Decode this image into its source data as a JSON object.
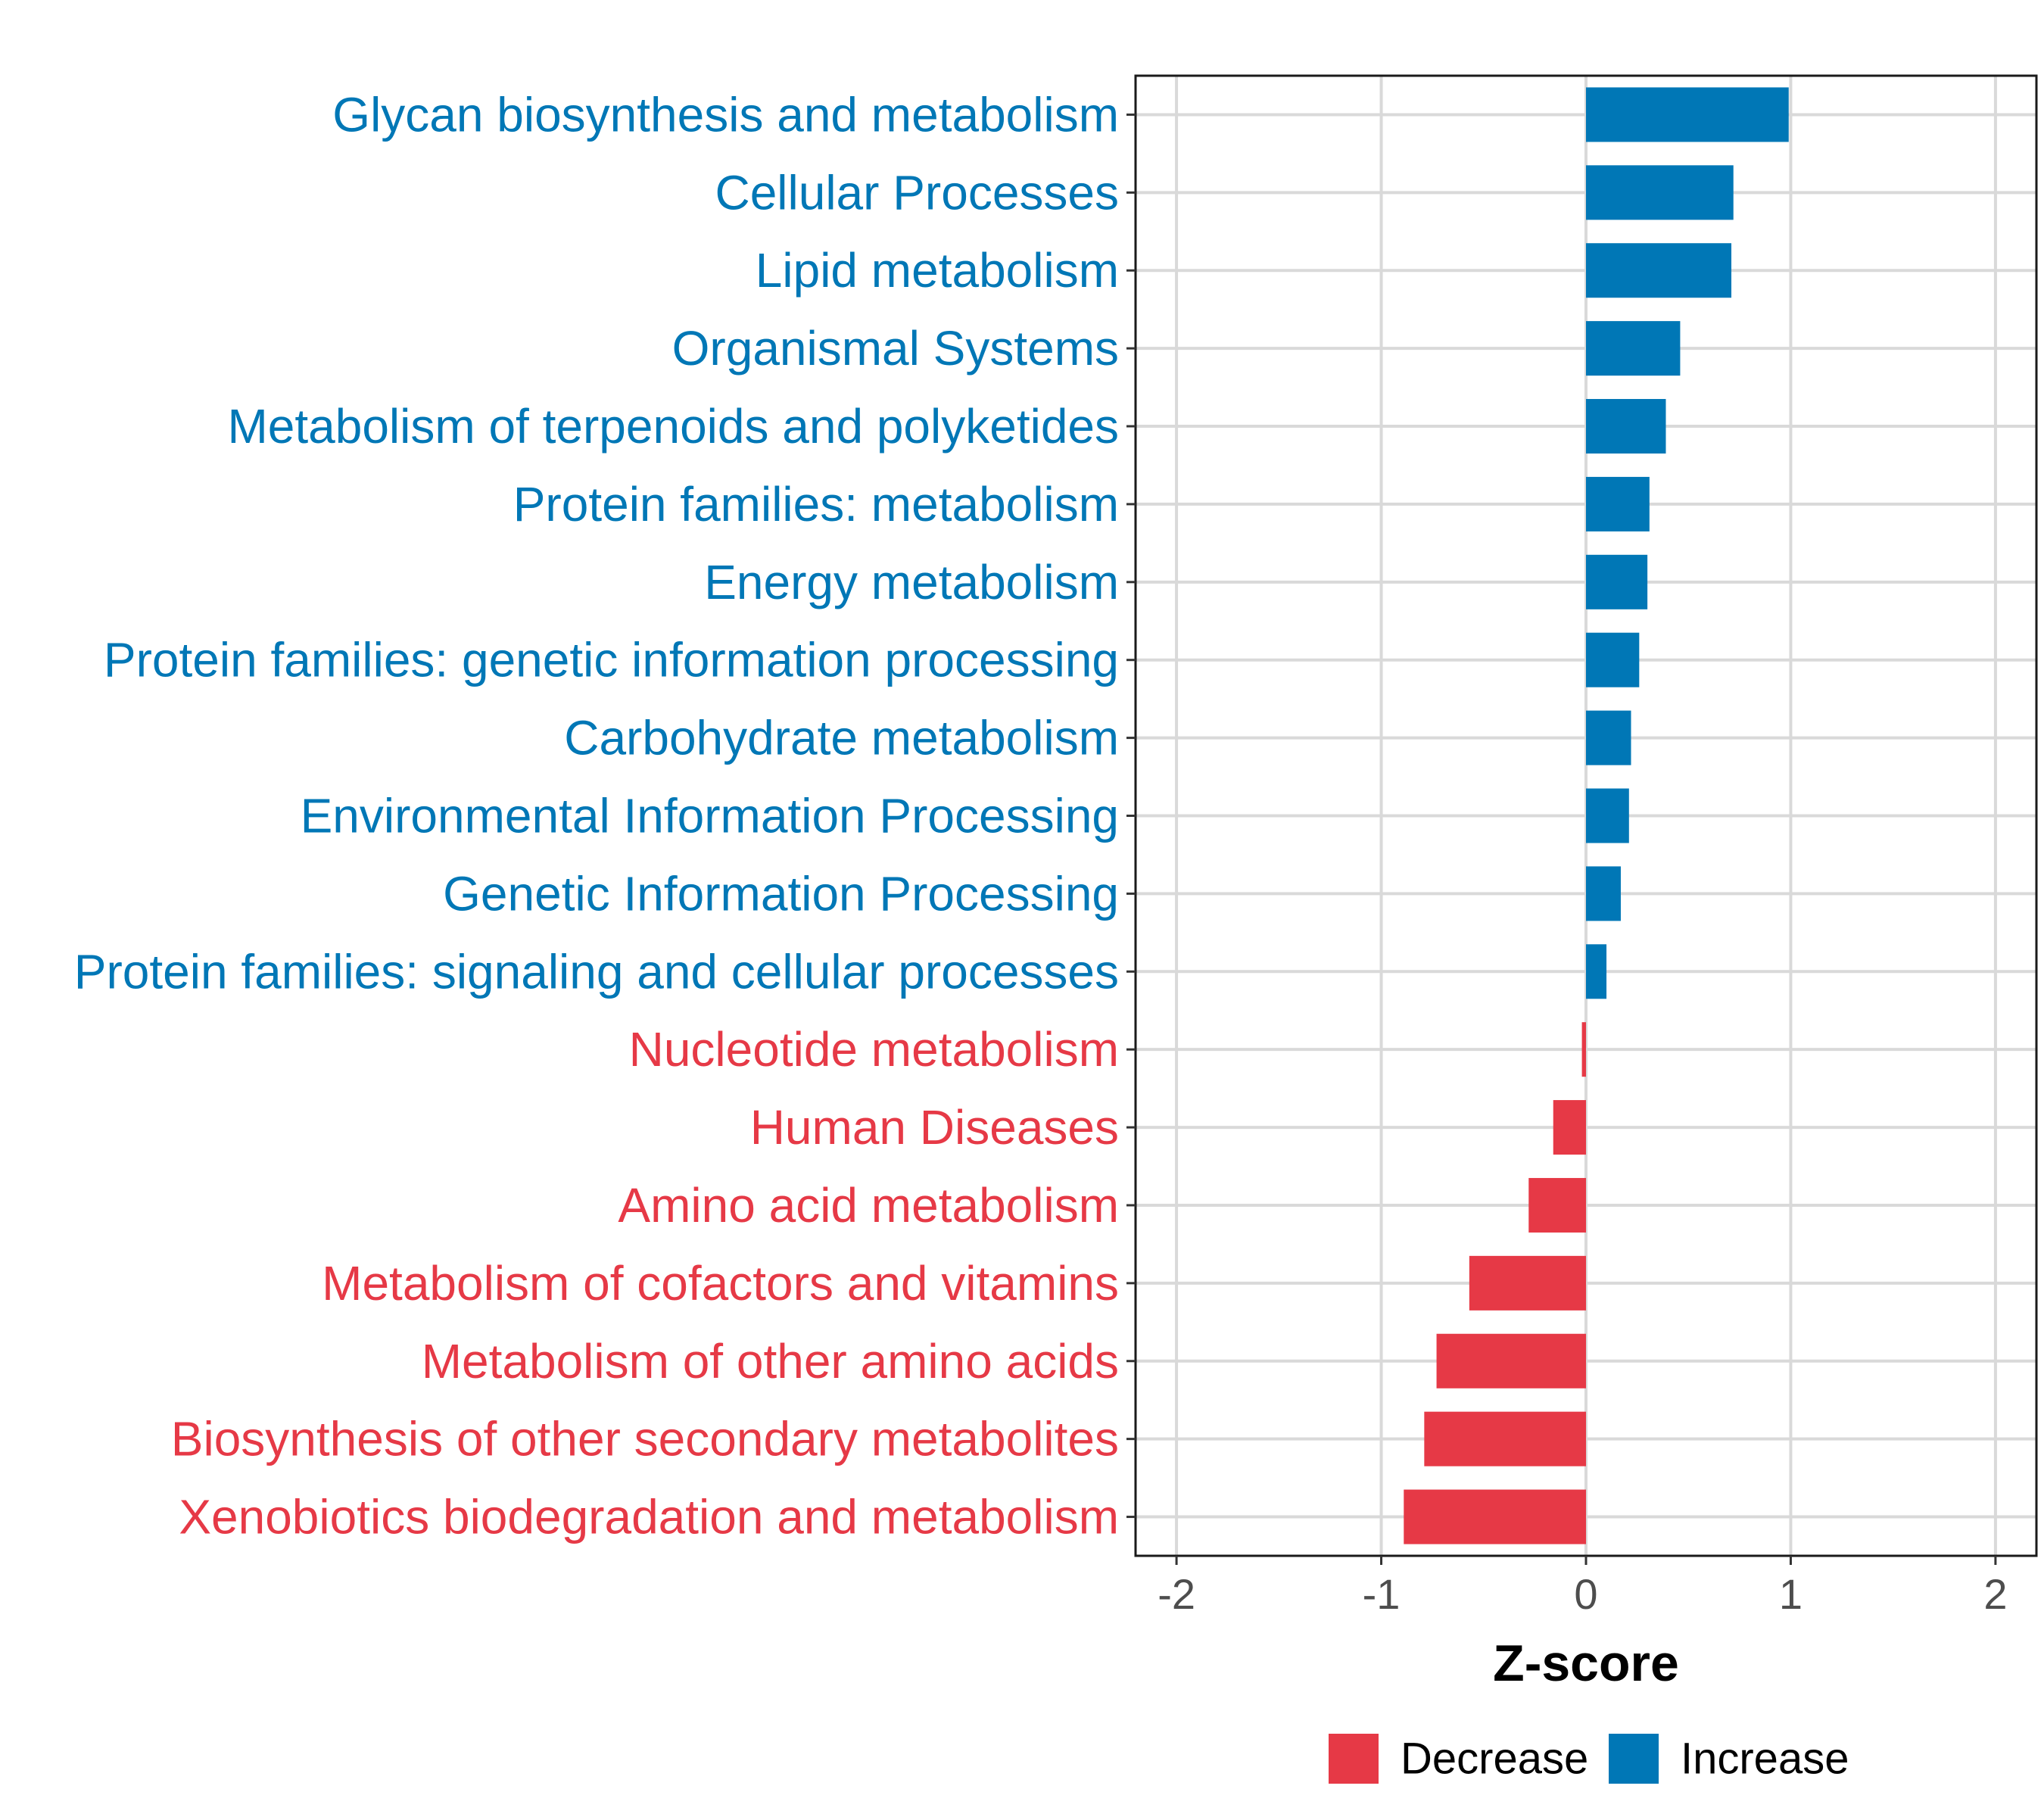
{
  "chart_data": {
    "type": "bar",
    "orientation": "horizontal",
    "categories": [
      "Glycan biosynthesis and metabolism",
      "Cellular Processes",
      "Lipid metabolism",
      "Organismal Systems",
      "Metabolism of terpenoids and polyketides",
      "Protein families: metabolism",
      "Energy metabolism",
      "Protein families: genetic information processing",
      "Carbohydrate metabolism",
      "Environmental Information Processing",
      "Genetic Information Processing",
      "Protein families: signaling and cellular processes",
      "Nucleotide metabolism",
      "Human Diseases",
      "Amino acid metabolism",
      "Metabolism of cofactors and vitamins",
      "Metabolism of other amino acids",
      "Biosynthesis of other secondary metabolites",
      "Xenobiotics biodegradation and metabolism"
    ],
    "values": [
      0.99,
      0.72,
      0.71,
      0.46,
      0.39,
      0.31,
      0.3,
      0.26,
      0.22,
      0.21,
      0.17,
      0.1,
      -0.02,
      -0.16,
      -0.28,
      -0.57,
      -0.73,
      -0.79,
      -0.89
    ],
    "groups": [
      "Increase",
      "Increase",
      "Increase",
      "Increase",
      "Increase",
      "Increase",
      "Increase",
      "Increase",
      "Increase",
      "Increase",
      "Increase",
      "Increase",
      "Decrease",
      "Decrease",
      "Decrease",
      "Decrease",
      "Decrease",
      "Decrease",
      "Decrease"
    ],
    "xlabel": "Z-score",
    "ylabel": "",
    "xlim": [
      -2.2,
      2.2
    ],
    "xticks": [
      -2,
      -1,
      0,
      1,
      2
    ],
    "xtick_labels": [
      "-2",
      "-1",
      "0",
      "1",
      "2"
    ],
    "grid": true,
    "legend": {
      "placement": "bottom",
      "entries": [
        {
          "label": "Decrease",
          "color": "#e63946"
        },
        {
          "label": "Increase",
          "color": "#0077b6"
        }
      ]
    },
    "colors": {
      "Decrease": "#e63946",
      "Increase": "#0077b6"
    }
  }
}
